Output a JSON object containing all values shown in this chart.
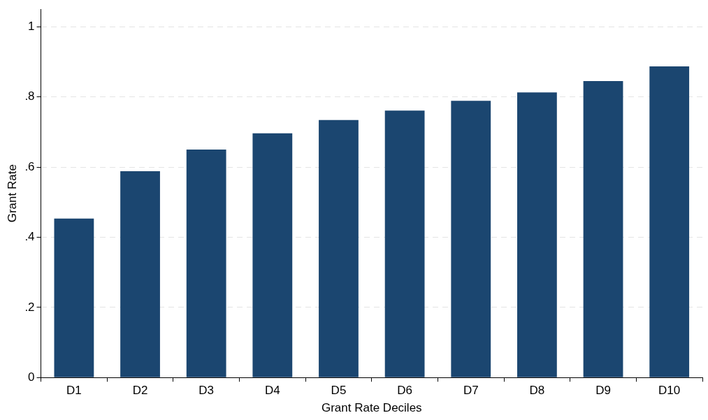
{
  "chart_data": {
    "type": "bar",
    "xlabel": "Grant Rate Deciles",
    "ylabel": "Grant Rate",
    "categories": [
      "D1",
      "D2",
      "D3",
      "D4",
      "D5",
      "D6",
      "D7",
      "D8",
      "D9",
      "D10"
    ],
    "values": [
      0.453,
      0.588,
      0.65,
      0.696,
      0.734,
      0.761,
      0.789,
      0.813,
      0.845,
      0.887
    ],
    "color": "#1b4670",
    "ylim": [
      0,
      1.05
    ],
    "yticks": [
      {
        "value": 0,
        "label": "0"
      },
      {
        "value": 0.2,
        "label": ".2"
      },
      {
        "value": 0.4,
        "label": ".4"
      },
      {
        "value": 0.6,
        "label": ".6"
      },
      {
        "value": 0.8,
        "label": ".8"
      },
      {
        "value": 1,
        "label": "1"
      }
    ],
    "grid": "y",
    "legend": false
  }
}
